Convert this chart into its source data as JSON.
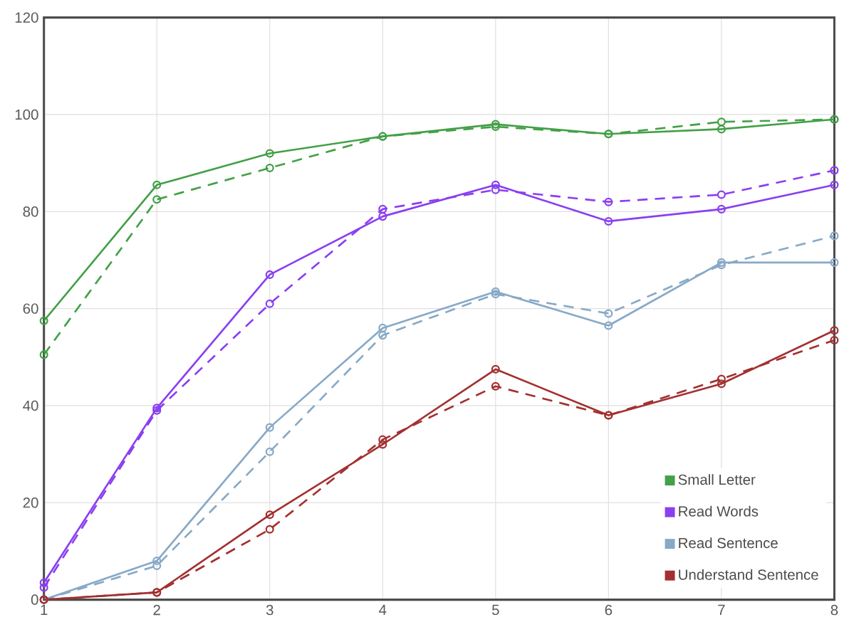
{
  "chart_data": {
    "type": "line",
    "x": [
      1,
      2,
      3,
      4,
      5,
      6,
      7,
      8
    ],
    "xlim": [
      1,
      8
    ],
    "xticks": [
      1,
      2,
      3,
      4,
      5,
      6,
      7,
      8
    ],
    "ylim": [
      0,
      120
    ],
    "yticks": [
      0,
      20,
      40,
      60,
      80,
      100,
      120
    ],
    "grid": true,
    "marker": "circle",
    "legend": "bottom right",
    "series": [
      {
        "name": "Small Letter",
        "color": "#43a047",
        "line_style": "solid",
        "values": [
          57.5,
          85.5,
          92,
          95.5,
          98,
          96,
          97,
          99
        ]
      },
      {
        "color": "#43a047",
        "line_style": "dashed",
        "values": [
          50.5,
          82.5,
          89,
          95.5,
          97.5,
          96,
          98.5,
          99
        ]
      },
      {
        "name": "Read Words",
        "color": "#8a3ff0",
        "line_style": "solid",
        "values": [
          3.5,
          39.5,
          67,
          79,
          85.5,
          78,
          80.5,
          85.5
        ]
      },
      {
        "color": "#8a3ff0",
        "line_style": "dashed",
        "values": [
          2.5,
          39,
          61,
          80.5,
          84.5,
          82,
          83.5,
          88.5
        ]
      },
      {
        "name": "Read Sentence",
        "color": "#87a9c7",
        "line_style": "solid",
        "values": [
          0,
          8,
          35.5,
          56,
          63.5,
          56.5,
          69.5,
          69.5
        ]
      },
      {
        "color": "#87a9c7",
        "line_style": "dashed",
        "values": [
          0,
          7,
          30.5,
          54.5,
          63,
          59,
          69,
          75
        ]
      },
      {
        "name": "Understand Sentence",
        "color": "#a33030",
        "line_style": "solid",
        "values": [
          0,
          1.5,
          17.5,
          32,
          47.5,
          38,
          44.5,
          55.5
        ]
      },
      {
        "color": "#a33030",
        "line_style": "dashed",
        "values": [
          0,
          1.5,
          14.5,
          33,
          44,
          38,
          45.5,
          53.5
        ]
      }
    ]
  }
}
